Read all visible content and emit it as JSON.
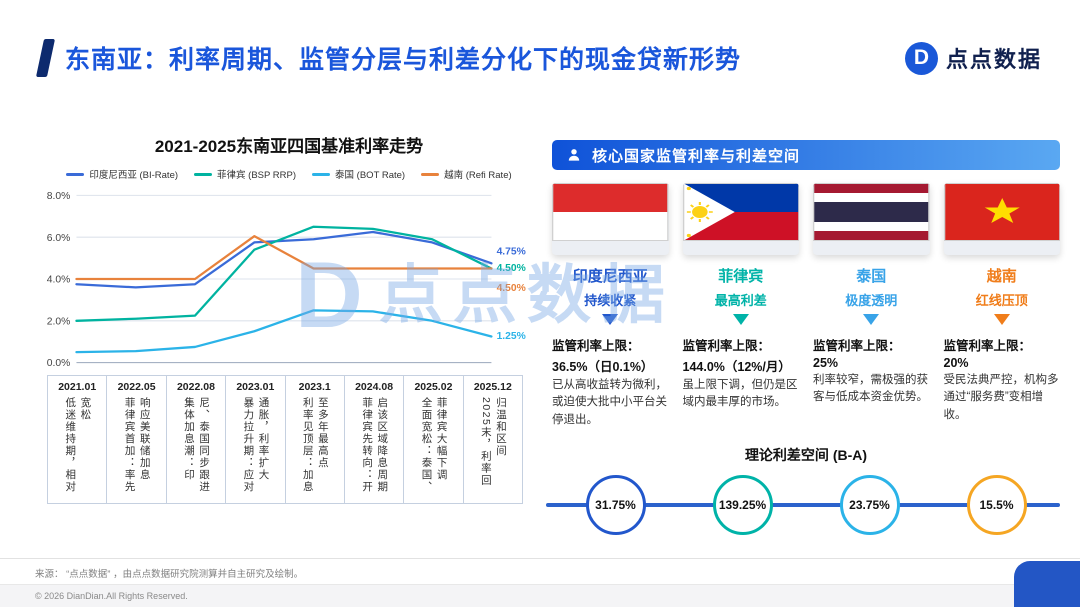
{
  "header": {
    "title": "东南亚：利率周期、监管分层与利差分化下的现金贷新形势",
    "logo_text": "点点数据"
  },
  "watermark": {
    "text": "点点数据",
    "mark": "D"
  },
  "chart_data": {
    "type": "line",
    "title": "2021-2025东南亚四国基准利率走势",
    "xlabel": "",
    "ylabel": "",
    "ylim": [
      0,
      8
    ],
    "yticks": [
      "0.0%",
      "2.0%",
      "4.0%",
      "6.0%",
      "8.0%"
    ],
    "grid": true,
    "legend_position": "top",
    "categories": [
      "2021.01",
      "2022.05",
      "2022.08",
      "2023.01",
      "2023.1",
      "2024.08",
      "2025.02",
      "2025.12"
    ],
    "series": [
      {
        "name": "印度尼西亚 (BI-Rate)",
        "color": "#3a6bd8",
        "values": [
          3.75,
          3.6,
          3.75,
          5.75,
          5.9,
          6.25,
          5.75,
          4.75
        ],
        "end_label": "4.75%",
        "end_label_y": 5.35
      },
      {
        "name": "菲律宾 (BSP RRP)",
        "color": "#00b3a0",
        "values": [
          2.0,
          2.1,
          2.25,
          5.4,
          6.5,
          6.4,
          5.9,
          4.5
        ],
        "end_label": "4.50%",
        "end_label_y": 4.55
      },
      {
        "name": "泰国 (BOT Rate)",
        "color": "#2bb3e8",
        "values": [
          0.5,
          0.55,
          0.75,
          1.5,
          2.5,
          2.45,
          2.0,
          1.25
        ],
        "end_label": "1.25%",
        "end_label_y": 1.3
      },
      {
        "name": "越南 (Refi Rate)",
        "color": "#e8823c",
        "values": [
          4.0,
          4.0,
          4.0,
          6.05,
          4.5,
          4.5,
          4.5,
          4.5
        ],
        "end_label": "4.50%",
        "end_label_y": 3.6
      }
    ],
    "annotations": [
      "低迷维持期，相对宽松",
      "菲律宾首加：率先响应美联储加息",
      "集体加息潮：印尼、泰国同步跟进",
      "暴力拉升期：应对通胀，利率扩大",
      "利率见顶层：加息至多年最高点",
      "菲律宾先转向：开启该区域降息周期",
      "全面宽松：泰国、菲律宾大幅下调",
      "2025末，利率回归温和区间"
    ]
  },
  "panel": {
    "title": "核心国家监管利率与利差空间",
    "countries": [
      {
        "name": "印度尼西亚",
        "tagline": "持续收紧",
        "color": "#2257cc",
        "cap_label": "监管利率上限：",
        "cap": "36.5%（日0.1%）",
        "desc": "已从高收益转为微利，或迫使大批中小平台关停退出。"
      },
      {
        "name": "菲律宾",
        "tagline": "最高利差",
        "color": "#00b3a8",
        "cap_label": "监管利率上限：",
        "cap": "144.0%（12%/月）",
        "desc": "虽上限下调，但仍是区域内最丰厚的市场。"
      },
      {
        "name": "泰国",
        "tagline": "极度透明",
        "color": "#38a3e8",
        "cap_label": "监管利率上限：",
        "cap": "25%",
        "desc": "利率较窄，需极强的获客与低成本资金优势。"
      },
      {
        "name": "越南",
        "tagline": "红线压顶",
        "color": "#f07d1a",
        "cap_label": "监管利率上限：",
        "cap": "20%",
        "desc": "受民法典严控，机构多通过“服务费”变相增收。"
      }
    ],
    "spread": {
      "title": "理论利差空间 (B-A)",
      "values": [
        "31.75%",
        "139.25%",
        "23.75%",
        "15.5%"
      ],
      "colors": [
        "#2257cc",
        "#00b3a8",
        "#2bb3e8",
        "#f5a623"
      ]
    }
  },
  "footer": {
    "source": "来源： “点点数据” ，由点点数据研究院测算并自主研究及绘制。",
    "copyright": "© 2026 DianDian.All Rights Reserved."
  }
}
